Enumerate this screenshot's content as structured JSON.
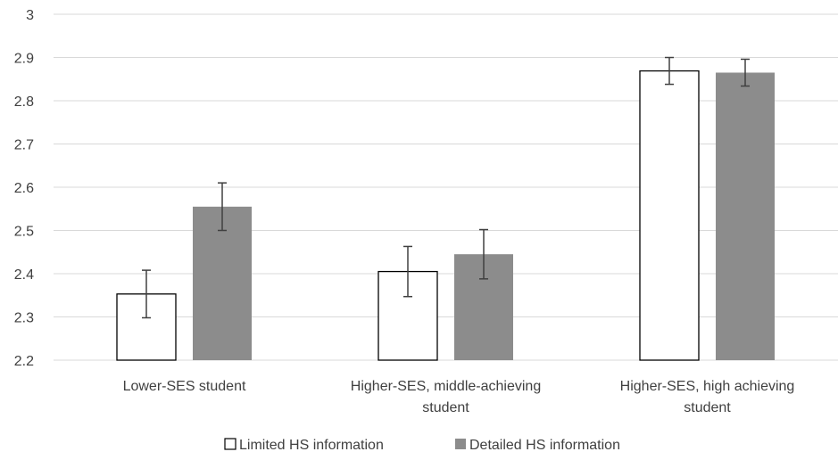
{
  "chart_data": {
    "type": "bar",
    "categories": [
      [
        "Lower-SES student"
      ],
      [
        "Higher-SES, middle-achieving",
        "student"
      ],
      [
        "Higher-SES, high achieving",
        "student"
      ]
    ],
    "series": [
      {
        "name": "Limited HS information",
        "color": "#ffffff",
        "stroke": "#000000",
        "values": [
          2.353,
          2.405,
          2.869
        ],
        "error_low": [
          2.298,
          2.347,
          2.838
        ],
        "error_high": [
          2.408,
          2.463,
          2.9
        ]
      },
      {
        "name": "Detailed HS information",
        "color": "#8c8c8c",
        "stroke": "#8c8c8c",
        "values": [
          2.555,
          2.445,
          2.865
        ],
        "error_low": [
          2.5,
          2.388,
          2.834
        ],
        "error_high": [
          2.61,
          2.502,
          2.896
        ]
      }
    ],
    "ylim": [
      2.2,
      3.0
    ],
    "yticks": [
      "2.2",
      "2.3",
      "2.4",
      "2.5",
      "2.6",
      "2.7",
      "2.8",
      "2.9",
      "3"
    ],
    "grid": true,
    "legend_position": "bottom"
  }
}
